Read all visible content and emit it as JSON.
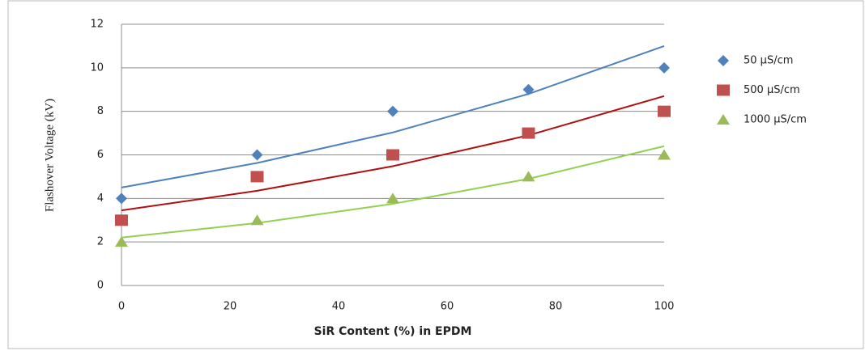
{
  "chart_data": {
    "type": "scatter",
    "x_label": "SiR Content (%) in EPDM",
    "y_label": "Flashover Voltage (kV)",
    "x": [
      0,
      25,
      50,
      75,
      100
    ],
    "series": [
      {
        "name": "50 µS/cm",
        "color": "#4f81bd",
        "marker": "diamond",
        "values": [
          4,
          6,
          8,
          9,
          10
        ],
        "trend": [
          4.5,
          5.63,
          7.03,
          8.8,
          11
        ],
        "trend_color": "#4f81bd"
      },
      {
        "name": "500 µS/cm",
        "color": "#c0504d",
        "marker": "square",
        "values": [
          3,
          5,
          6,
          7,
          8
        ],
        "trend": [
          3.45,
          4.35,
          5.48,
          6.9,
          8.7
        ],
        "trend_color": "#b01010"
      },
      {
        "name": "1000 µS/cm",
        "color": "#9bbb59",
        "marker": "triangle",
        "values": [
          2,
          3,
          4,
          5,
          6
        ],
        "trend": [
          2.2,
          2.87,
          3.75,
          4.9,
          6.4
        ],
        "trend_color": "#92d050"
      }
    ],
    "xlim": [
      0,
      100
    ],
    "xticks": [
      0,
      20,
      40,
      60,
      80,
      100
    ],
    "ylim": [
      0,
      12
    ],
    "yticks": [
      0,
      2,
      4,
      6,
      8,
      10,
      12
    ],
    "grid": true,
    "legend": "right"
  }
}
